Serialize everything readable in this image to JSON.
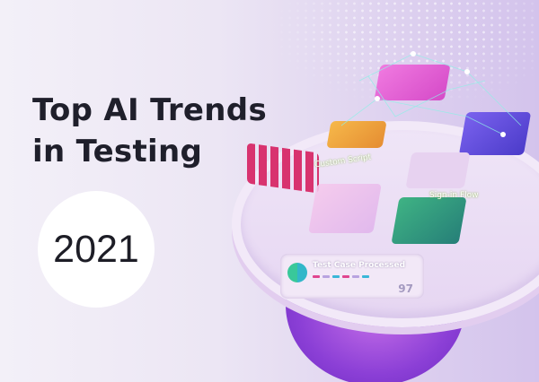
{
  "title_lines": [
    "Top AI Trends",
    "in Testing"
  ],
  "year": "2021",
  "illustration": {
    "labels": {
      "custom_script": "Custom Script",
      "sign_in_flow": "Sign-in Flow"
    },
    "status_screen": {
      "label": "Test Case Processed",
      "count": "97"
    }
  },
  "colors": {
    "background": "#ece6f4",
    "title": "#1f1f2b",
    "pink_block": "#d8336f",
    "green_panel": "#2f9a7a",
    "blue_panel": "#5b49d8",
    "magenta_panel": "#e45ad0",
    "orange_panel": "#f0a13a"
  }
}
